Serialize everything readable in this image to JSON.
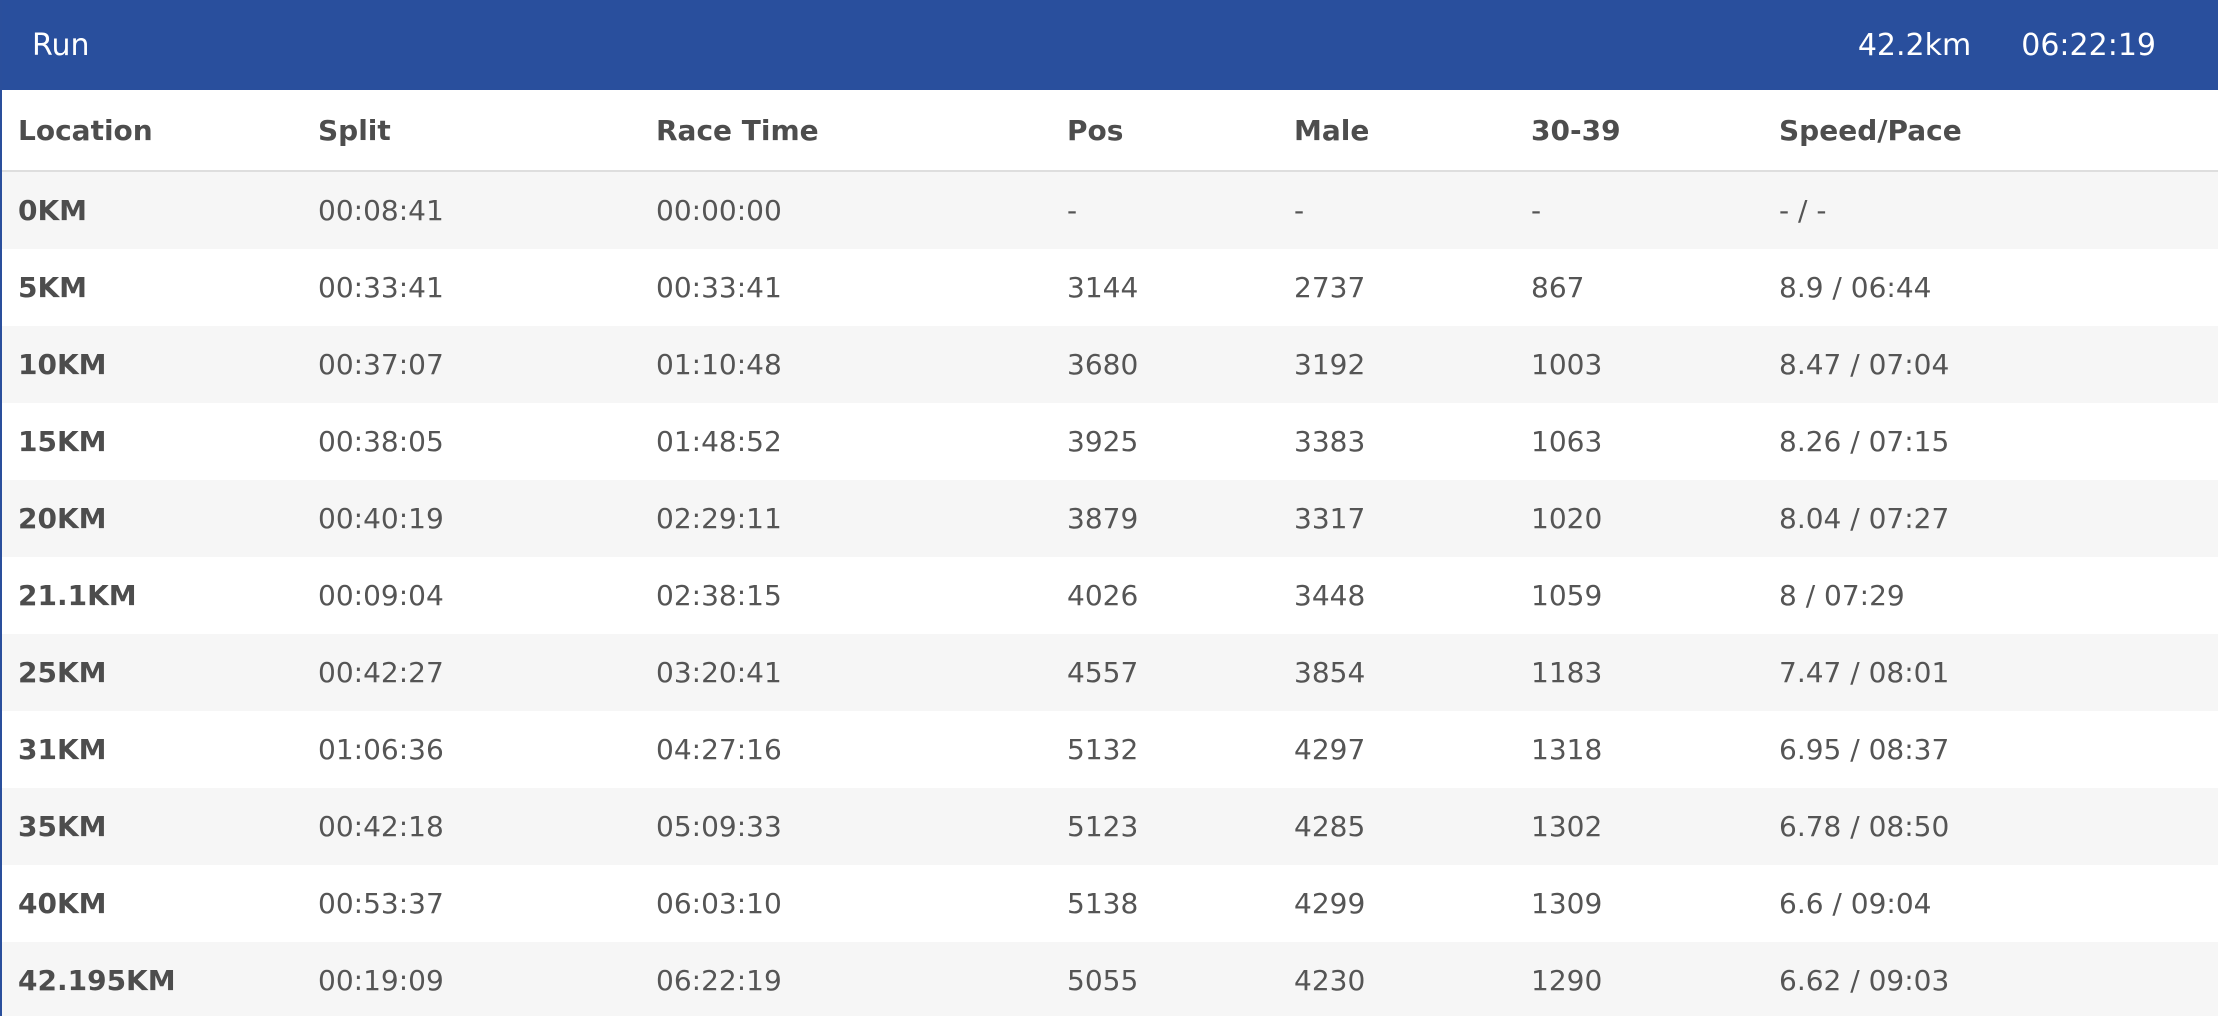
{
  "header": {
    "title": "Run",
    "distance": "42.2km",
    "time": "06:22:19"
  },
  "colors": {
    "header_bg": "#294f9d",
    "row_alt": "#f6f6f6"
  },
  "table": {
    "columns": [
      "Location",
      "Split",
      "Race Time",
      "Pos",
      "Male",
      "30-39",
      "Speed/Pace"
    ],
    "rows": [
      [
        "0KM",
        "00:08:41",
        "00:00:00",
        "-",
        "-",
        "-",
        "- / -"
      ],
      [
        "5KM",
        "00:33:41",
        "00:33:41",
        "3144",
        "2737",
        "867",
        "8.9 / 06:44"
      ],
      [
        "10KM",
        "00:37:07",
        "01:10:48",
        "3680",
        "3192",
        "1003",
        "8.47 / 07:04"
      ],
      [
        "15KM",
        "00:38:05",
        "01:48:52",
        "3925",
        "3383",
        "1063",
        "8.26 / 07:15"
      ],
      [
        "20KM",
        "00:40:19",
        "02:29:11",
        "3879",
        "3317",
        "1020",
        "8.04 / 07:27"
      ],
      [
        "21.1KM",
        "00:09:04",
        "02:38:15",
        "4026",
        "3448",
        "1059",
        "8 / 07:29"
      ],
      [
        "25KM",
        "00:42:27",
        "03:20:41",
        "4557",
        "3854",
        "1183",
        "7.47 / 08:01"
      ],
      [
        "31KM",
        "01:06:36",
        "04:27:16",
        "5132",
        "4297",
        "1318",
        "6.95 / 08:37"
      ],
      [
        "35KM",
        "00:42:18",
        "05:09:33",
        "5123",
        "4285",
        "1302",
        "6.78 / 08:50"
      ],
      [
        "40KM",
        "00:53:37",
        "06:03:10",
        "5138",
        "4299",
        "1309",
        "6.6 / 09:04"
      ],
      [
        "42.195KM",
        "00:19:09",
        "06:22:19",
        "5055",
        "4230",
        "1290",
        "6.62 / 09:03"
      ]
    ]
  }
}
